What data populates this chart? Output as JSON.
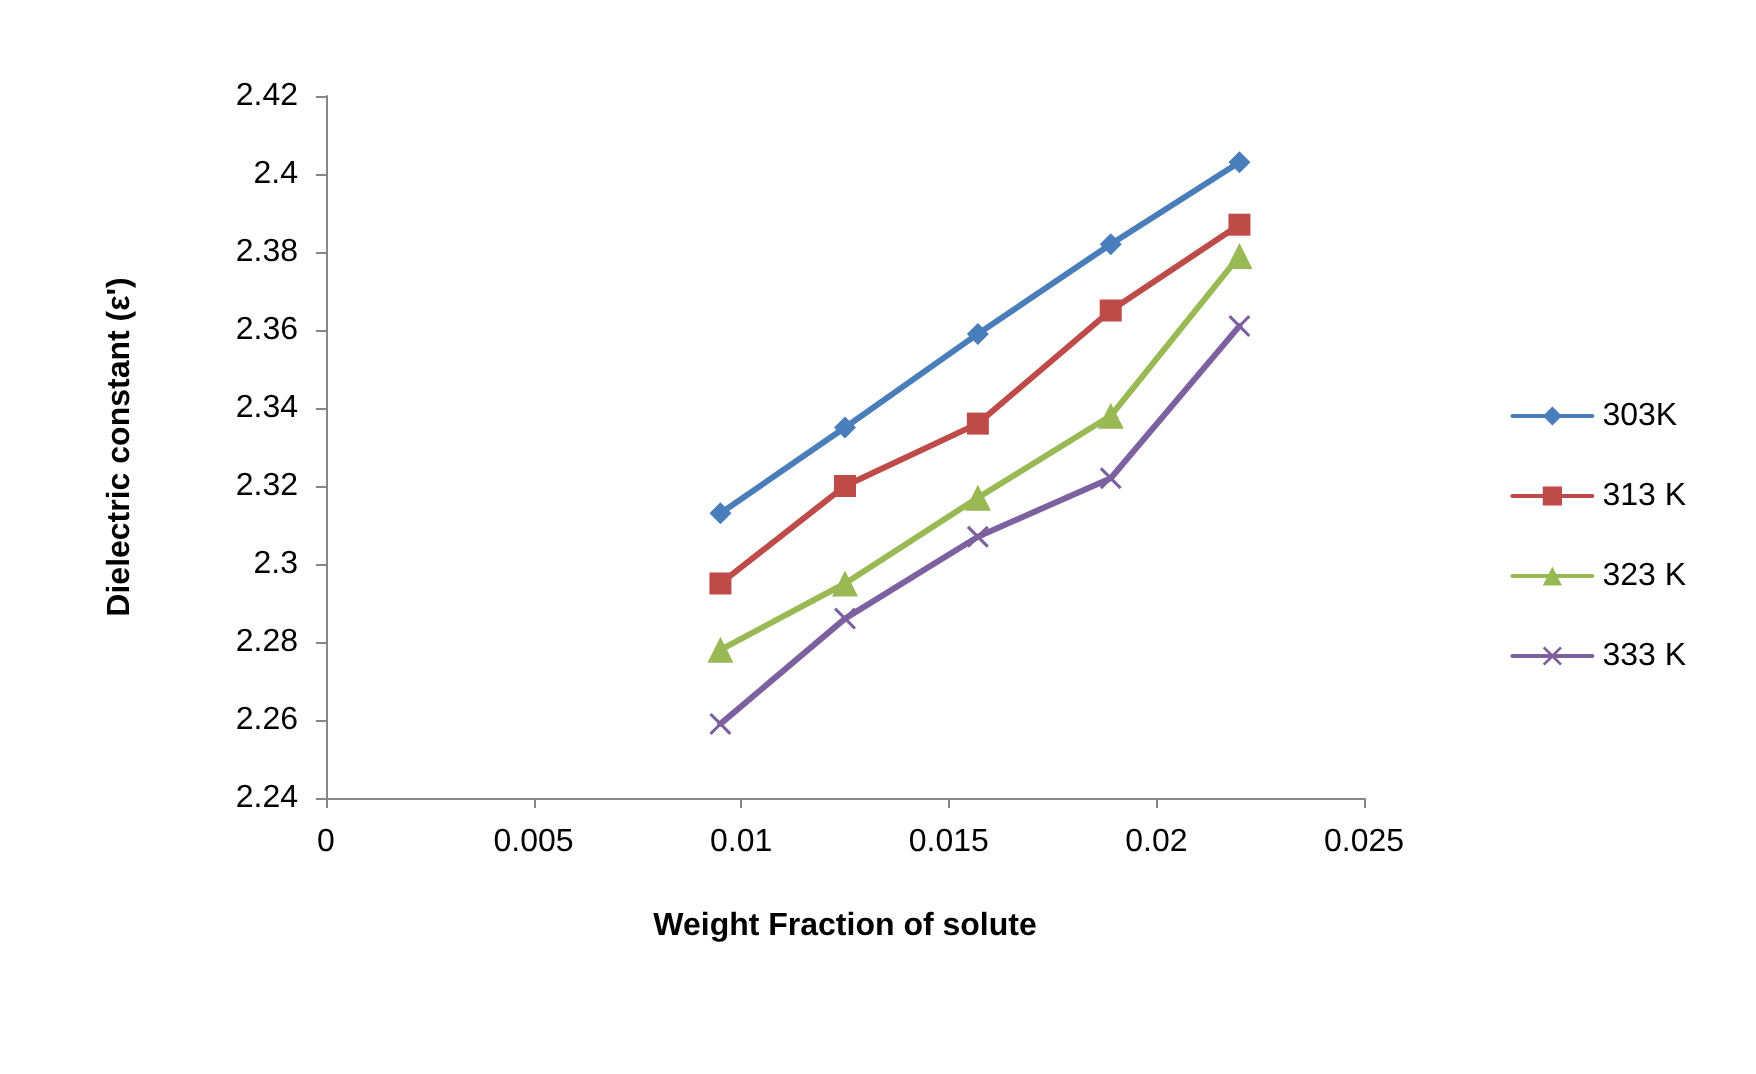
{
  "chart_data": {
    "type": "line",
    "xlabel": "Weight Fraction of solute",
    "ylabel": "Dielectric constant (ε')",
    "x": [
      0.0095,
      0.0125,
      0.0157,
      0.0189,
      0.022
    ],
    "series": [
      {
        "name": "303K",
        "color": "#4a7ebb",
        "marker": "diamond",
        "values": [
          2.313,
          2.335,
          2.359,
          2.382,
          2.403
        ]
      },
      {
        "name": "313 K",
        "color": "#be4b48",
        "marker": "square",
        "values": [
          2.295,
          2.32,
          2.336,
          2.365,
          2.387
        ]
      },
      {
        "name": "323 K",
        "color": "#98b954",
        "marker": "triangle",
        "values": [
          2.278,
          2.295,
          2.317,
          2.338,
          2.379
        ]
      },
      {
        "name": "333 K",
        "color": "#7d60a0",
        "marker": "cross",
        "values": [
          2.259,
          2.286,
          2.307,
          2.322,
          2.361
        ]
      }
    ],
    "xlim": [
      0,
      0.025
    ],
    "xticks": [
      0,
      0.005,
      0.01,
      0.015,
      0.02,
      0.025
    ],
    "ylim": [
      2.24,
      2.42
    ],
    "yticks": [
      2.24,
      2.26,
      2.28,
      2.3,
      2.32,
      2.34,
      2.36,
      2.38,
      2.4,
      2.42
    ],
    "grid": false,
    "legend": "right",
    "line_style": "solid"
  }
}
